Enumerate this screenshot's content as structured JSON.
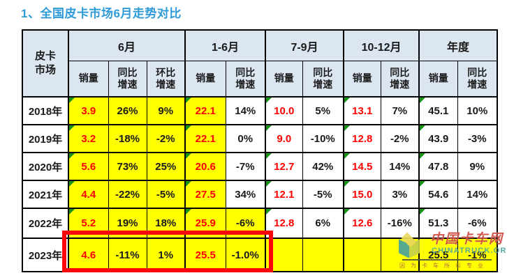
{
  "title": "1、全国皮卡市场6月走势对比",
  "colors": {
    "title_blue": "#2e9bd8",
    "cell_yellow": "#ffff00",
    "header_blue": "#dce6f1",
    "value_red": "#fe0000",
    "triangle_green": "#159415",
    "highlight_red": "#fb0606",
    "watermark_red": "#cf4a40",
    "watermark_teal": "#4aa5a0"
  },
  "header": {
    "corner": [
      "皮卡",
      "市场"
    ],
    "groups": [
      {
        "label": "6月",
        "span": 3
      },
      {
        "label": "1-6月",
        "span": 2
      },
      {
        "label": "7-9月",
        "span": 2
      },
      {
        "label": "10-12月",
        "span": 2
      },
      {
        "label": "年度",
        "span": 2
      }
    ],
    "subcols": [
      [
        "销量"
      ],
      [
        "同比",
        "增速"
      ],
      [
        "环比",
        "增速"
      ],
      [
        "销量"
      ],
      [
        "同比",
        "增速"
      ],
      [
        "销量"
      ],
      [
        "同比",
        "增速"
      ],
      [
        "销量"
      ],
      [
        "同比",
        "增速"
      ],
      [
        "销量"
      ],
      [
        "同比",
        "增速"
      ]
    ]
  },
  "rows": [
    {
      "year": "2018年",
      "cells": [
        {
          "t": "3.9",
          "c": "red",
          "bg": "y",
          "tri": true
        },
        {
          "t": "26%",
          "bg": "y"
        },
        {
          "t": "9%",
          "bg": "y"
        },
        {
          "t": "22.1",
          "c": "red",
          "bg": "y",
          "tri": true
        },
        {
          "t": "14%"
        },
        {
          "t": "10.0",
          "c": "red",
          "tri": true
        },
        {
          "t": "5%"
        },
        {
          "t": "13.1",
          "c": "red",
          "tri": true
        },
        {
          "t": "7%"
        },
        {
          "t": "45.1",
          "tri": true
        },
        {
          "t": "10%"
        }
      ]
    },
    {
      "year": "2019年",
      "cells": [
        {
          "t": "3.2",
          "c": "red",
          "bg": "y",
          "tri": true
        },
        {
          "t": "-18%",
          "bg": "y"
        },
        {
          "t": "-2%",
          "bg": "y"
        },
        {
          "t": "22.1",
          "c": "red",
          "bg": "y",
          "tri": true
        },
        {
          "t": "0%"
        },
        {
          "t": "9.0",
          "c": "red",
          "tri": true
        },
        {
          "t": "-10%"
        },
        {
          "t": "12.8",
          "c": "red",
          "tri": true
        },
        {
          "t": "-2%"
        },
        {
          "t": "43.9",
          "tri": true
        },
        {
          "t": "-3%"
        }
      ]
    },
    {
      "year": "2020年",
      "cells": [
        {
          "t": "5.6",
          "c": "red",
          "bg": "y",
          "tri": true
        },
        {
          "t": "73%",
          "bg": "y"
        },
        {
          "t": "25%",
          "bg": "y"
        },
        {
          "t": "20.6",
          "c": "red",
          "bg": "y",
          "tri": true
        },
        {
          "t": "-7%"
        },
        {
          "t": "12.7",
          "c": "red",
          "tri": true
        },
        {
          "t": "42%"
        },
        {
          "t": "14.5",
          "c": "red",
          "tri": true
        },
        {
          "t": "14%"
        },
        {
          "t": "47.8",
          "tri": true
        },
        {
          "t": "9%"
        }
      ]
    },
    {
      "year": "2021年",
      "cells": [
        {
          "t": "4.4",
          "c": "red",
          "bg": "y",
          "tri": true
        },
        {
          "t": "-22%",
          "bg": "y"
        },
        {
          "t": "-5%",
          "bg": "y"
        },
        {
          "t": "27.5",
          "c": "red",
          "bg": "y",
          "tri": true
        },
        {
          "t": "34%"
        },
        {
          "t": "12.1",
          "c": "red",
          "tri": true
        },
        {
          "t": "-5%"
        },
        {
          "t": "15.0",
          "c": "red",
          "tri": true
        },
        {
          "t": "3%"
        },
        {
          "t": "54.6",
          "tri": true
        },
        {
          "t": "14%"
        }
      ]
    },
    {
      "year": "2022年",
      "cells": [
        {
          "t": "5.2",
          "c": "red",
          "bg": "y",
          "tri": true
        },
        {
          "t": "19%",
          "bg": "y"
        },
        {
          "t": "18%",
          "bg": "y"
        },
        {
          "t": "25.9",
          "c": "red",
          "bg": "y",
          "tri": true
        },
        {
          "t": "-6%",
          "bg": "y"
        },
        {
          "t": "12.8",
          "c": "red",
          "tri": true
        },
        {
          "t": "6%"
        },
        {
          "t": "12.6",
          "c": "red",
          "tri": true
        },
        {
          "t": "-16%"
        },
        {
          "t": "51.3",
          "tri": true
        },
        {
          "t": "-6%"
        }
      ]
    },
    {
      "year": "2023年",
      "cells": [
        {
          "t": "4.6",
          "c": "red",
          "bg": "y"
        },
        {
          "t": "-11%",
          "bg": "y"
        },
        {
          "t": "1%",
          "bg": "y"
        },
        {
          "t": "25.5",
          "c": "red",
          "bg": "y"
        },
        {
          "t": "-1.0%",
          "bg": "y"
        },
        {
          "t": "",
          "bg": "y"
        },
        {
          "t": "",
          "bg": "y"
        },
        {
          "t": "",
          "bg": "y"
        },
        {
          "t": "",
          "bg": "y"
        },
        {
          "t": "25.5",
          "bg": "y"
        },
        {
          "t": "-1%",
          "bg": "y"
        }
      ]
    }
  ],
  "watermark": {
    "name_cn": "中国卡车网",
    "name_en": "CHINATRUCK.ORG",
    "slogan": "因为卡车所以专业"
  },
  "chart_data": {
    "type": "table",
    "title": "1、全国皮卡市场6月走势对比",
    "row_header": "皮卡市场",
    "column_groups": [
      "6月",
      "1-6月",
      "7-9月",
      "10-12月",
      "年度"
    ],
    "columns": [
      "6月销量",
      "6月同比增速",
      "6月环比增速",
      "1-6月销量",
      "1-6月同比增速",
      "7-9月销量",
      "7-9月同比增速",
      "10-12月销量",
      "10-12月同比增速",
      "年度销量",
      "年度同比增速"
    ],
    "years": [
      "2018年",
      "2019年",
      "2020年",
      "2021年",
      "2022年",
      "2023年"
    ],
    "values": [
      [
        "3.9",
        "26%",
        "9%",
        "22.1",
        "14%",
        "10.0",
        "5%",
        "13.1",
        "7%",
        "45.1",
        "10%"
      ],
      [
        "3.2",
        "-18%",
        "-2%",
        "22.1",
        "0%",
        "9.0",
        "-10%",
        "12.8",
        "-2%",
        "43.9",
        "-3%"
      ],
      [
        "5.6",
        "73%",
        "25%",
        "20.6",
        "-7%",
        "12.7",
        "42%",
        "14.5",
        "14%",
        "47.8",
        "9%"
      ],
      [
        "4.4",
        "-22%",
        "-5%",
        "27.5",
        "34%",
        "12.1",
        "-5%",
        "15.0",
        "3%",
        "54.6",
        "14%"
      ],
      [
        "5.2",
        "19%",
        "18%",
        "25.9",
        "-6%",
        "12.8",
        "6%",
        "12.6",
        "-16%",
        "51.3",
        "-6%"
      ],
      [
        "4.6",
        "-11%",
        "1%",
        "25.5",
        "-1.0%",
        "",
        "",
        "",
        "",
        "25.5",
        "-1%"
      ]
    ],
    "highlight": "2023年 row from 6月销量 to 1-6月同比增速 outlined in red"
  }
}
